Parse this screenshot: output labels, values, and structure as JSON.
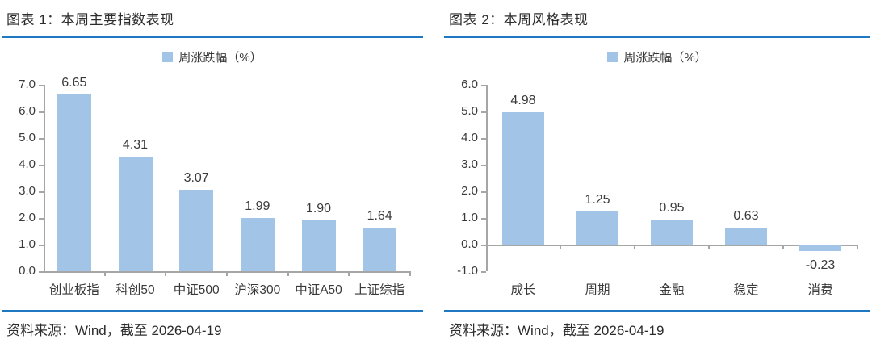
{
  "colors": {
    "bar": "#A2C4E6",
    "rule": "#1E78C2",
    "axis": "#A6A6A6",
    "text": "#3A3A3A"
  },
  "panels": [
    {
      "title": "图表 1：本周主要指数表现",
      "legend": "周涨跌幅（%）",
      "source": "资料来源：Wind，截至 2026-04-19"
    },
    {
      "title": "图表 2：本周风格表现",
      "legend": "周涨跌幅（%）",
      "source": "资料来源：Wind，截至 2026-04-19"
    }
  ],
  "chart_data": [
    {
      "type": "bar",
      "title": "图表 1：本周主要指数表现",
      "legend": [
        "周涨跌幅（%）"
      ],
      "legend_position": "top",
      "categories": [
        "创业板指",
        "科创50",
        "中证500",
        "沪深300",
        "中证A50",
        "上证综指"
      ],
      "values": [
        6.65,
        4.31,
        3.07,
        1.99,
        1.9,
        1.64
      ],
      "value_label_decimals": 2,
      "xlabel": "",
      "ylabel": "",
      "ylim": [
        0,
        7
      ],
      "ytick_step": 1.0,
      "ytick_labels": [
        "0.0",
        "1.0",
        "2.0",
        "3.0",
        "4.0",
        "5.0",
        "6.0",
        "7.0"
      ],
      "grid": false
    },
    {
      "type": "bar",
      "title": "图表 2：本周风格表现",
      "legend": [
        "周涨跌幅（%）"
      ],
      "legend_position": "top",
      "categories": [
        "成长",
        "周期",
        "金融",
        "稳定",
        "消费"
      ],
      "values": [
        4.98,
        1.25,
        0.95,
        0.63,
        -0.23
      ],
      "value_label_decimals": 2,
      "xlabel": "",
      "ylabel": "",
      "ylim": [
        -1,
        6
      ],
      "ytick_step": 1.0,
      "ytick_labels": [
        "-1.0",
        "0.0",
        "1.0",
        "2.0",
        "3.0",
        "4.0",
        "5.0",
        "6.0"
      ],
      "grid": false
    }
  ]
}
